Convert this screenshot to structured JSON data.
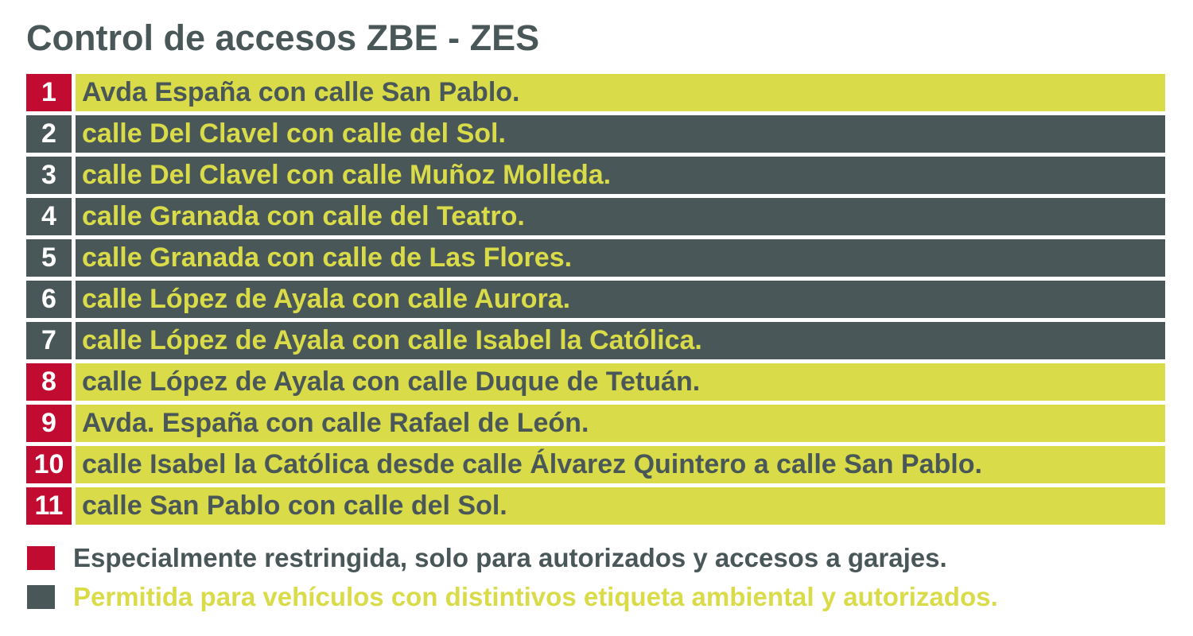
{
  "title": "Control de accesos ZBE - ZES",
  "colors": {
    "restricted": "#c20b30",
    "permitted": "#4a5758",
    "accent": "#d9dc48"
  },
  "rows": [
    {
      "number": "1",
      "text": "Avda España con calle San Pablo.",
      "category": "restricted"
    },
    {
      "number": "2",
      "text": "calle Del Clavel con calle del Sol.",
      "category": "permitted"
    },
    {
      "number": "3",
      "text": "calle Del Clavel con calle Muñoz Molleda.",
      "category": "permitted"
    },
    {
      "number": "4",
      "text": "calle Granada con calle del Teatro.",
      "category": "permitted"
    },
    {
      "number": "5",
      "text": "calle Granada con calle de Las Flores.",
      "category": "permitted"
    },
    {
      "number": "6",
      "text": "calle López de Ayala con calle Aurora.",
      "category": "permitted"
    },
    {
      "number": "7",
      "text": "calle López de Ayala con calle Isabel la Católica.",
      "category": "permitted"
    },
    {
      "number": "8",
      "text": "calle López de Ayala con calle Duque de Tetuán.",
      "category": "restricted"
    },
    {
      "number": "9",
      "text": "Avda. España con calle Rafael de León.",
      "category": "restricted"
    },
    {
      "number": "10",
      "text": "calle Isabel la Católica desde calle Álvarez Quintero a calle San Pablo.",
      "category": "restricted"
    },
    {
      "number": "11",
      "text": "calle San Pablo con calle del Sol.",
      "category": "restricted"
    }
  ],
  "legend": {
    "restricted": "Especialmente restringida, solo para autorizados y accesos a garajes.",
    "permitted": "Permitida para vehículos con distintivos etiqueta ambiental y autorizados."
  }
}
